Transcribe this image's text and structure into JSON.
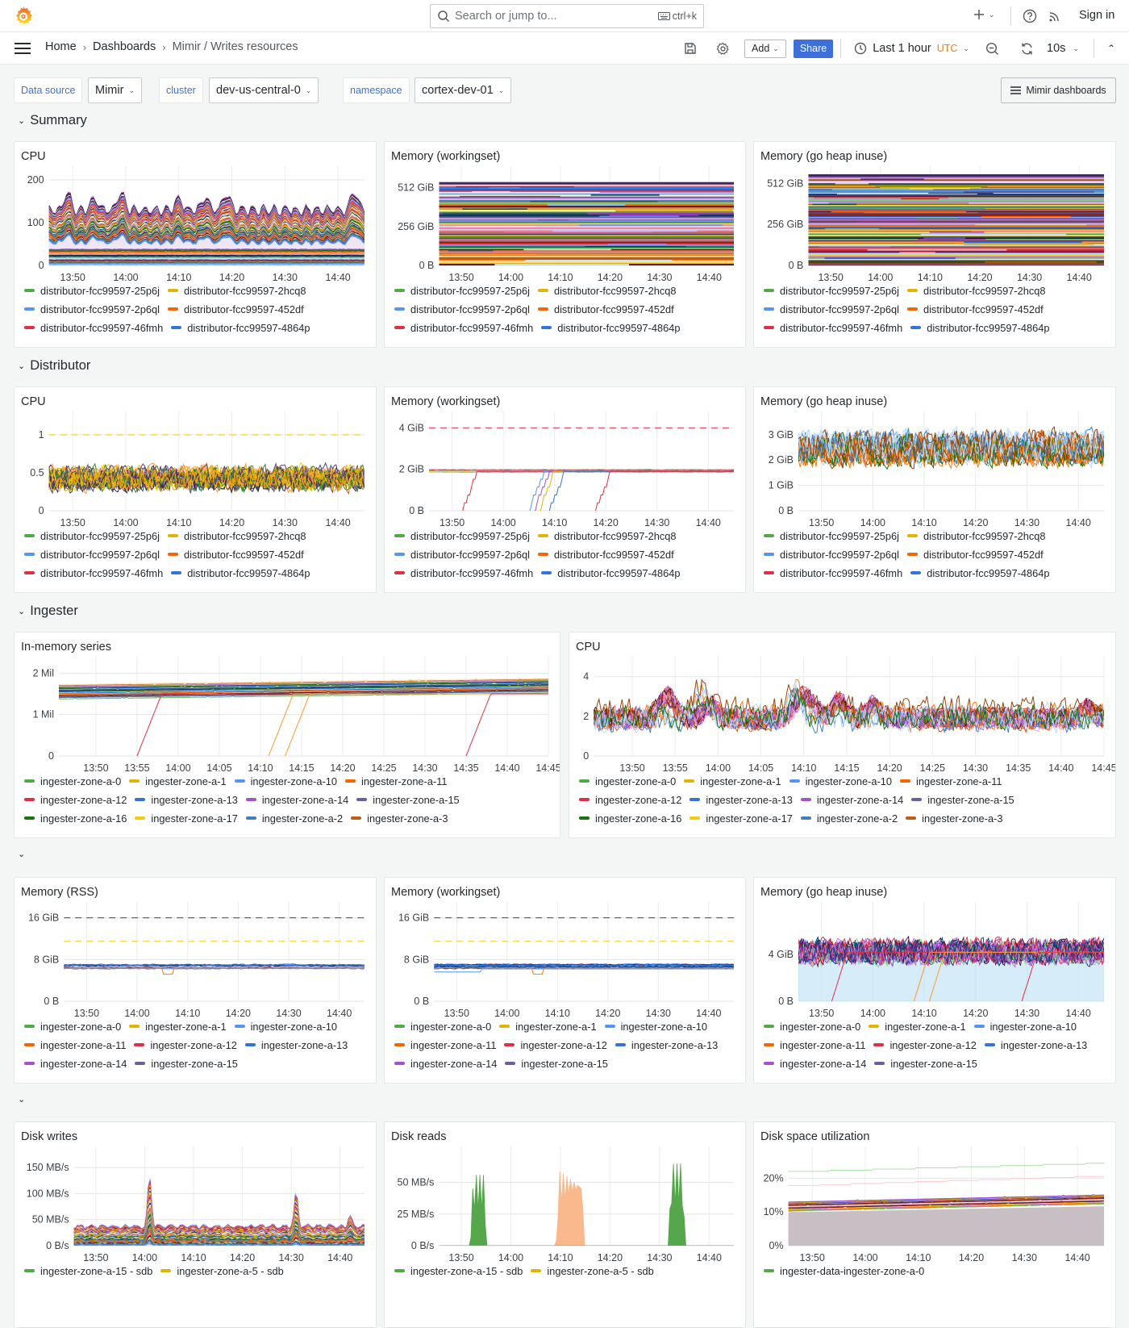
{
  "topbar": {
    "search_placeholder": "Search or jump to...",
    "search_shortcut": "ctrl+k",
    "sign_in": "Sign in",
    "icons": [
      "grafana-logo",
      "search-icon",
      "keyboard-icon",
      "plus-icon",
      "help-icon",
      "rss-icon"
    ]
  },
  "breadcrumb": [
    "Home",
    "Dashboards",
    "Mimir / Writes resources"
  ],
  "toolbar": {
    "add": "Add",
    "share": "Share",
    "time_range": "Last 1 hour",
    "timezone": "UTC",
    "refresh_interval": "10s",
    "accent": "#3d71d9",
    "timezone_color": "#ff780a"
  },
  "variables": [
    {
      "label": "Data source",
      "value": "Mimir"
    },
    {
      "label": "cluster",
      "value": "dev-us-central-0"
    },
    {
      "label": "namespace",
      "value": "cortex-dev-01"
    }
  ],
  "dashboards_button": "Mimir dashboards",
  "rows": [
    {
      "title": "Summary"
    },
    {
      "title": "Distributor"
    },
    {
      "title": "Ingester"
    },
    {
      "title": ""
    },
    {
      "title": ""
    }
  ],
  "panels": [
    {
      "title": "CPU",
      "kind": "stacked-lines",
      "yaxis": {
        "max": 213,
        "ticks": [
          {
            "value": 0,
            "label": "0"
          },
          {
            "value": 100,
            "label": "100"
          },
          {
            "value": 200,
            "label": "200"
          }
        ]
      },
      "xticks": [
        "13:50",
        "14:00",
        "14:10",
        "14:20",
        "14:30",
        "14:40"
      ],
      "legend": [
        {
          "label": "distributor-fcc99597-25p6j",
          "color": "#56a64b"
        },
        {
          "label": "distributor-fcc99597-2hcq8",
          "color": "#e0b400"
        },
        {
          "label": "distributor-fcc99597-2p6ql",
          "color": "#5794f2"
        },
        {
          "label": "distributor-fcc99597-452df",
          "color": "#fa6400"
        },
        {
          "label": "distributor-fcc99597-46fmh",
          "color": "#e02f44"
        },
        {
          "label": "distributor-fcc99597-4864p",
          "color": "#3274d9"
        }
      ]
    },
    {
      "title": "Memory (workingset)",
      "kind": "stacked-bands",
      "yaxis": {
        "max": 600,
        "ticks": [
          {
            "value": 0,
            "label": "0 B"
          },
          {
            "value": 256,
            "label": "256 GiB"
          },
          {
            "value": 512,
            "label": "512 GiB"
          }
        ]
      },
      "xticks": [
        "13:50",
        "14:00",
        "14:10",
        "14:20",
        "14:30",
        "14:40"
      ],
      "legend": [
        {
          "label": "distributor-fcc99597-25p6j",
          "color": "#56a64b"
        },
        {
          "label": "distributor-fcc99597-2hcq8",
          "color": "#e0b400"
        },
        {
          "label": "distributor-fcc99597-2p6ql",
          "color": "#5794f2"
        },
        {
          "label": "distributor-fcc99597-452df",
          "color": "#fa6400"
        },
        {
          "label": "distributor-fcc99597-46fmh",
          "color": "#e02f44"
        },
        {
          "label": "distributor-fcc99597-4864p",
          "color": "#3274d9"
        }
      ]
    },
    {
      "title": "Memory (go heap inuse)",
      "kind": "stacked-bands",
      "yaxis": {
        "max": 570,
        "ticks": [
          {
            "value": 0,
            "label": "0 B"
          },
          {
            "value": 256,
            "label": "256 GiB"
          },
          {
            "value": 512,
            "label": "512 GiB"
          }
        ]
      },
      "xticks": [
        "13:50",
        "14:00",
        "14:10",
        "14:20",
        "14:30",
        "14:40"
      ],
      "legend": [
        {
          "label": "distributor-fcc99597-25p6j",
          "color": "#56a64b"
        },
        {
          "label": "distributor-fcc99597-2hcq8",
          "color": "#e0b400"
        },
        {
          "label": "distributor-fcc99597-2p6ql",
          "color": "#5794f2"
        },
        {
          "label": "distributor-fcc99597-452df",
          "color": "#fa6400"
        },
        {
          "label": "distributor-fcc99597-46fmh",
          "color": "#e02f44"
        },
        {
          "label": "distributor-fcc99597-4864p",
          "color": "#3274d9"
        }
      ]
    },
    {
      "title": "CPU",
      "kind": "lines",
      "yaxis": {
        "max": 1.2,
        "ticks": [
          {
            "value": 0,
            "label": "0"
          },
          {
            "value": 0.5,
            "label": "0.5"
          },
          {
            "value": 1,
            "label": "1"
          }
        ]
      },
      "xticks": [
        "13:50",
        "14:00",
        "14:10",
        "14:20",
        "14:30",
        "14:40"
      ],
      "legend": [
        {
          "label": "distributor-fcc99597-25p6j",
          "color": "#56a64b"
        },
        {
          "label": "distributor-fcc99597-2hcq8",
          "color": "#e0b400"
        },
        {
          "label": "distributor-fcc99597-2p6ql",
          "color": "#5794f2"
        },
        {
          "label": "distributor-fcc99597-452df",
          "color": "#fa6400"
        },
        {
          "label": "distributor-fcc99597-46fmh",
          "color": "#e02f44"
        },
        {
          "label": "distributor-fcc99597-4864p",
          "color": "#3274d9"
        }
      ]
    },
    {
      "title": "Memory (workingset)",
      "kind": "lines",
      "yaxis": {
        "max": 4.4,
        "ticks": [
          {
            "value": 0,
            "label": "0 B"
          },
          {
            "value": 2,
            "label": "2 GiB"
          },
          {
            "value": 4,
            "label": "4 GiB"
          }
        ]
      },
      "xticks": [
        "13:50",
        "14:00",
        "14:10",
        "14:20",
        "14:30",
        "14:40"
      ],
      "legend": [
        {
          "label": "distributor-fcc99597-25p6j",
          "color": "#56a64b"
        },
        {
          "label": "distributor-fcc99597-2hcq8",
          "color": "#e0b400"
        },
        {
          "label": "distributor-fcc99597-2p6ql",
          "color": "#5794f2"
        },
        {
          "label": "distributor-fcc99597-452df",
          "color": "#fa6400"
        },
        {
          "label": "distributor-fcc99597-46fmh",
          "color": "#e02f44"
        },
        {
          "label": "distributor-fcc99597-4864p",
          "color": "#3274d9"
        }
      ]
    },
    {
      "title": "Memory (go heap inuse)",
      "kind": "lines",
      "yaxis": {
        "max": 3.6,
        "ticks": [
          {
            "value": 0,
            "label": "0 B"
          },
          {
            "value": 1,
            "label": "1 GiB"
          },
          {
            "value": 2,
            "label": "2 GiB"
          },
          {
            "value": 3,
            "label": "3 GiB"
          }
        ]
      },
      "xticks": [
        "13:50",
        "14:00",
        "14:10",
        "14:20",
        "14:30",
        "14:40"
      ],
      "legend": [
        {
          "label": "distributor-fcc99597-25p6j",
          "color": "#56a64b"
        },
        {
          "label": "distributor-fcc99597-2hcq8",
          "color": "#e0b400"
        },
        {
          "label": "distributor-fcc99597-2p6ql",
          "color": "#5794f2"
        },
        {
          "label": "distributor-fcc99597-452df",
          "color": "#fa6400"
        },
        {
          "label": "distributor-fcc99597-46fmh",
          "color": "#e02f44"
        },
        {
          "label": "distributor-fcc99597-4864p",
          "color": "#3274d9"
        }
      ]
    },
    {
      "title": "In-memory series",
      "kind": "lines",
      "yaxis": {
        "max": 2.2,
        "ticks": [
          {
            "value": 0,
            "label": "0"
          },
          {
            "value": 1,
            "label": "1 Mil"
          },
          {
            "value": 2,
            "label": "2 Mil"
          }
        ]
      },
      "xticks": [
        "13:50",
        "13:55",
        "14:00",
        "14:05",
        "14:10",
        "14:15",
        "14:20",
        "14:25",
        "14:30",
        "14:35",
        "14:40",
        "14:45"
      ],
      "legend": [
        {
          "label": "ingester-zone-a-0",
          "color": "#56a64b"
        },
        {
          "label": "ingester-zone-a-1",
          "color": "#e0b400"
        },
        {
          "label": "ingester-zone-a-10",
          "color": "#5794f2"
        },
        {
          "label": "ingester-zone-a-11",
          "color": "#fa6400"
        },
        {
          "label": "ingester-zone-a-12",
          "color": "#e02f44"
        },
        {
          "label": "ingester-zone-a-13",
          "color": "#3274d9"
        },
        {
          "label": "ingester-zone-a-14",
          "color": "#a352cc"
        },
        {
          "label": "ingester-zone-a-15",
          "color": "#705da0"
        },
        {
          "label": "ingester-zone-a-16",
          "color": "#19730e"
        },
        {
          "label": "ingester-zone-a-17",
          "color": "#f2cc0c"
        },
        {
          "label": "ingester-zone-a-2",
          "color": "#447ebc"
        },
        {
          "label": "ingester-zone-a-3",
          "color": "#c15c17"
        }
      ]
    },
    {
      "title": "CPU",
      "kind": "lines",
      "yaxis": {
        "max": 4.6,
        "ticks": [
          {
            "value": 0,
            "label": "0"
          },
          {
            "value": 2,
            "label": "2"
          },
          {
            "value": 4,
            "label": "4"
          }
        ]
      },
      "xticks": [
        "13:50",
        "13:55",
        "14:00",
        "14:05",
        "14:10",
        "14:15",
        "14:20",
        "14:25",
        "14:30",
        "14:35",
        "14:40",
        "14:45"
      ],
      "legend": [
        {
          "label": "ingester-zone-a-0",
          "color": "#56a64b"
        },
        {
          "label": "ingester-zone-a-1",
          "color": "#e0b400"
        },
        {
          "label": "ingester-zone-a-10",
          "color": "#5794f2"
        },
        {
          "label": "ingester-zone-a-11",
          "color": "#fa6400"
        },
        {
          "label": "ingester-zone-a-12",
          "color": "#e02f44"
        },
        {
          "label": "ingester-zone-a-13",
          "color": "#3274d9"
        },
        {
          "label": "ingester-zone-a-14",
          "color": "#a352cc"
        },
        {
          "label": "ingester-zone-a-15",
          "color": "#705da0"
        },
        {
          "label": "ingester-zone-a-16",
          "color": "#19730e"
        },
        {
          "label": "ingester-zone-a-17",
          "color": "#f2cc0c"
        },
        {
          "label": "ingester-zone-a-2",
          "color": "#447ebc"
        },
        {
          "label": "ingester-zone-a-3",
          "color": "#c15c17"
        }
      ]
    },
    {
      "title": "Memory (RSS)",
      "kind": "lines",
      "yaxis": {
        "max": 17.5,
        "ticks": [
          {
            "value": 0,
            "label": "0 B"
          },
          {
            "value": 8,
            "label": "8 GiB"
          },
          {
            "value": 16,
            "label": "16 GiB"
          }
        ]
      },
      "xticks": [
        "13:50",
        "14:00",
        "14:10",
        "14:20",
        "14:30",
        "14:40"
      ],
      "legend": [
        {
          "label": "ingester-zone-a-0",
          "color": "#56a64b"
        },
        {
          "label": "ingester-zone-a-1",
          "color": "#e0b400"
        },
        {
          "label": "ingester-zone-a-10",
          "color": "#5794f2"
        },
        {
          "label": "ingester-zone-a-11",
          "color": "#fa6400"
        },
        {
          "label": "ingester-zone-a-12",
          "color": "#e02f44"
        },
        {
          "label": "ingester-zone-a-13",
          "color": "#3274d9"
        },
        {
          "label": "ingester-zone-a-14",
          "color": "#a352cc"
        },
        {
          "label": "ingester-zone-a-15",
          "color": "#705da0"
        }
      ]
    },
    {
      "title": "Memory (workingset)",
      "kind": "lines",
      "yaxis": {
        "max": 17.5,
        "ticks": [
          {
            "value": 0,
            "label": "0 B"
          },
          {
            "value": 8,
            "label": "8 GiB"
          },
          {
            "value": 16,
            "label": "16 GiB"
          }
        ]
      },
      "xticks": [
        "13:50",
        "14:00",
        "14:10",
        "14:20",
        "14:30",
        "14:40"
      ],
      "legend": [
        {
          "label": "ingester-zone-a-0",
          "color": "#56a64b"
        },
        {
          "label": "ingester-zone-a-1",
          "color": "#e0b400"
        },
        {
          "label": "ingester-zone-a-10",
          "color": "#5794f2"
        },
        {
          "label": "ingester-zone-a-11",
          "color": "#fa6400"
        },
        {
          "label": "ingester-zone-a-12",
          "color": "#e02f44"
        },
        {
          "label": "ingester-zone-a-13",
          "color": "#3274d9"
        },
        {
          "label": "ingester-zone-a-14",
          "color": "#a352cc"
        },
        {
          "label": "ingester-zone-a-15",
          "color": "#705da0"
        }
      ]
    },
    {
      "title": "Memory (go heap inuse)",
      "kind": "lines",
      "yaxis": {
        "max": 7.8,
        "ticks": [
          {
            "value": 0,
            "label": "0 B"
          },
          {
            "value": 4,
            "label": "4 GiB"
          }
        ]
      },
      "xticks": [
        "13:50",
        "14:00",
        "14:10",
        "14:20",
        "14:30",
        "14:40"
      ],
      "legend": [
        {
          "label": "ingester-zone-a-0",
          "color": "#56a64b"
        },
        {
          "label": "ingester-zone-a-1",
          "color": "#e0b400"
        },
        {
          "label": "ingester-zone-a-10",
          "color": "#5794f2"
        },
        {
          "label": "ingester-zone-a-11",
          "color": "#fa6400"
        },
        {
          "label": "ingester-zone-a-12",
          "color": "#e02f44"
        },
        {
          "label": "ingester-zone-a-13",
          "color": "#3274d9"
        },
        {
          "label": "ingester-zone-a-14",
          "color": "#a352cc"
        },
        {
          "label": "ingester-zone-a-15",
          "color": "#705da0"
        }
      ]
    },
    {
      "title": "Disk writes",
      "kind": "stacked-lines",
      "yaxis": {
        "max": 175,
        "ticks": [
          {
            "value": 0,
            "label": "0 B/s"
          },
          {
            "value": 50,
            "label": "50 MB/s"
          },
          {
            "value": 100,
            "label": "100 MB/s"
          },
          {
            "value": 150,
            "label": "150 MB/s"
          }
        ]
      },
      "xticks": [
        "13:50",
        "14:00",
        "14:10",
        "14:20",
        "14:30",
        "14:40"
      ],
      "legend": [
        {
          "label": "ingester-zone-a-15 - sdb",
          "color": "#56a64b"
        },
        {
          "label": "ingester-zone-a-5 - sdb",
          "color": "#e0b400"
        }
      ]
    },
    {
      "title": "Disk reads",
      "kind": "area",
      "yaxis": {
        "max": 72,
        "ticks": [
          {
            "value": 0,
            "label": "0 B/s"
          },
          {
            "value": 25,
            "label": "25 MB/s"
          },
          {
            "value": 50,
            "label": "50 MB/s"
          }
        ]
      },
      "xticks": [
        "13:50",
        "14:00",
        "14:10",
        "14:20",
        "14:30",
        "14:40"
      ],
      "legend": [
        {
          "label": "ingester-zone-a-15 - sdb",
          "color": "#56a64b"
        },
        {
          "label": "ingester-zone-a-5 - sdb",
          "color": "#e0b400"
        }
      ]
    },
    {
      "title": "Disk space utilization",
      "kind": "area",
      "yaxis": {
        "max": 27,
        "ticks": [
          {
            "value": 0,
            "label": "0%"
          },
          {
            "value": 10,
            "label": "10%"
          },
          {
            "value": 20,
            "label": "20%"
          }
        ]
      },
      "xticks": [
        "13:50",
        "14:00",
        "14:10",
        "14:20",
        "14:30",
        "14:40"
      ],
      "legend": [
        {
          "label": "ingester-data-ingester-zone-a-0",
          "color": "#56a64b"
        }
      ]
    }
  ]
}
